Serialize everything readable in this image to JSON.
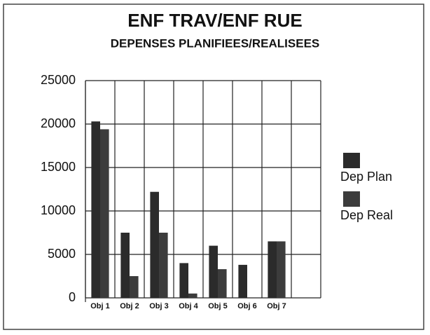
{
  "chart_data": {
    "type": "bar",
    "title": "ENF TRAV/ENF RUE",
    "subtitle": "DEPENSES PLANIFIEES/REALISEES",
    "categories": [
      "Obj 1",
      "Obj 2",
      "Obj 3",
      "Obj 4",
      "Obj 5",
      "Obj 6",
      "Obj 7",
      null
    ],
    "series": [
      {
        "name": "Dep Plan",
        "color": "#2b2b2b",
        "values": [
          20300,
          7500,
          12200,
          4000,
          6000,
          3800,
          6500,
          null
        ]
      },
      {
        "name": "Dep Real",
        "color": "#3c3c3c",
        "values": [
          19400,
          2500,
          7500,
          500,
          3300,
          0,
          6500,
          null
        ]
      }
    ],
    "ylim": [
      0,
      25000
    ],
    "yticks": [
      0,
      5000,
      10000,
      15000,
      20000,
      25000
    ],
    "grid": true,
    "legend": "right"
  }
}
